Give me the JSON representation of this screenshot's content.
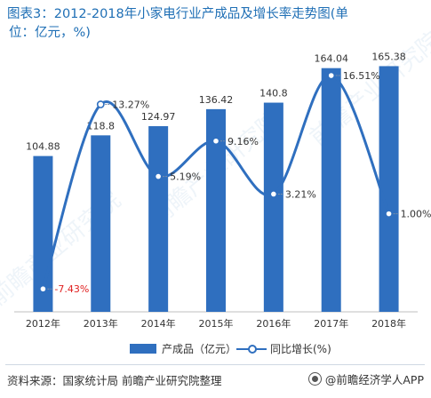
{
  "title": {
    "line1": "图表3：2012-2018年小家电行业产成品及增长率走势图(单",
    "line2": "位：亿元，%)"
  },
  "chart_data": {
    "type": "bar",
    "categories": [
      "2012年",
      "2013年",
      "2014年",
      "2015年",
      "2016年",
      "2017年",
      "2018年"
    ],
    "series": [
      {
        "name": "产成品（亿元）",
        "type": "bar",
        "axis": "left",
        "values": [
          104.88,
          118.8,
          124.97,
          136.42,
          140.8,
          164.04,
          165.38
        ],
        "labels": [
          "104.88",
          "118.8",
          "124.97",
          "136.42",
          "140.8",
          "164.04",
          "165.38"
        ]
      },
      {
        "name": "同比增长(%)",
        "type": "line",
        "axis": "right",
        "smooth": true,
        "values": [
          -7.43,
          13.27,
          5.19,
          9.16,
          3.21,
          16.51,
          1.0
        ],
        "labels": [
          "-7.43%",
          "13.27%",
          "5.19%",
          "9.16%",
          "3.21%",
          "16.51%",
          "1.00%"
        ]
      }
    ],
    "ylim_left": [
      0,
      180
    ],
    "ylim_right": [
      -10,
      20
    ],
    "legend_position": "bottom",
    "grid": false,
    "colors": {
      "bar": "#2f6fbf",
      "line": "#2f6fbf",
      "negative_label": "#e02020"
    }
  },
  "watermark": {
    "text": "前瞻产业研究院"
  },
  "source": {
    "text": "资料来源：国家统计局 前瞻产业研究院整理"
  },
  "brand": {
    "icon": "brand-logo-icon",
    "text": "@前瞻经济学人APP"
  }
}
